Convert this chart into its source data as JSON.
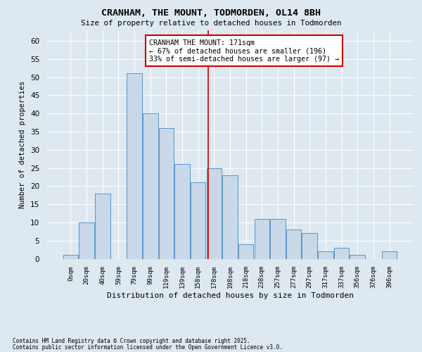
{
  "title": "CRANHAM, THE MOUNT, TODMORDEN, OL14 8BH",
  "subtitle": "Size of property relative to detached houses in Todmorden",
  "xlabel": "Distribution of detached houses by size in Todmorden",
  "ylabel": "Number of detached properties",
  "bar_labels": [
    "0sqm",
    "20sqm",
    "40sqm",
    "59sqm",
    "79sqm",
    "99sqm",
    "119sqm",
    "139sqm",
    "158sqm",
    "178sqm",
    "198sqm",
    "218sqm",
    "238sqm",
    "257sqm",
    "277sqm",
    "297sqm",
    "317sqm",
    "337sqm",
    "356sqm",
    "376sqm",
    "396sqm"
  ],
  "bar_values": [
    1,
    10,
    18,
    0,
    51,
    40,
    36,
    26,
    21,
    25,
    23,
    4,
    11,
    11,
    8,
    7,
    2,
    3,
    1,
    0,
    2
  ],
  "bar_color": "#c8d8e8",
  "bar_edge_color": "#5a96c8",
  "background_color": "#dde8f0",
  "grid_color": "#ffffff",
  "ylim": [
    0,
    63
  ],
  "yticks": [
    0,
    5,
    10,
    15,
    20,
    25,
    30,
    35,
    40,
    45,
    50,
    55,
    60
  ],
  "annotation_line1": "CRANHAM THE MOUNT: 171sqm",
  "annotation_line2": "← 67% of detached houses are smaller (196)",
  "annotation_line3": "33% of semi-detached houses are larger (97) →",
  "annotation_box_color": "#ffffff",
  "annotation_box_edge": "#cc0000",
  "red_line_x": 8.65,
  "footnote1": "Contains HM Land Registry data © Crown copyright and database right 2025.",
  "footnote2": "Contains public sector information licensed under the Open Government Licence v3.0."
}
